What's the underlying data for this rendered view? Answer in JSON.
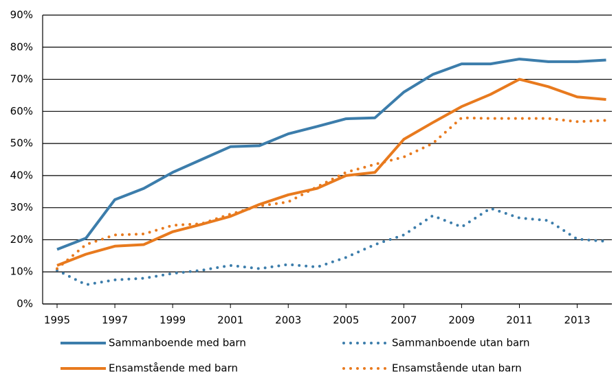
{
  "chart_data": {
    "type": "line",
    "x": [
      1995,
      1996,
      1997,
      1998,
      1999,
      2000,
      2001,
      2002,
      2003,
      2004,
      2005,
      2006,
      2007,
      2008,
      2009,
      2010,
      2011,
      2012,
      2013,
      2014
    ],
    "xlim": [
      1994.5,
      2014.2
    ],
    "xticks": [
      1995,
      1997,
      1999,
      2001,
      2003,
      2005,
      2007,
      2009,
      2011,
      2013
    ],
    "ylim": [
      0,
      90
    ],
    "yticks": [
      {
        "value": 0,
        "label": "0%"
      },
      {
        "value": 10,
        "label": "10%"
      },
      {
        "value": 20,
        "label": "20%"
      },
      {
        "value": 30,
        "label": "30%"
      },
      {
        "value": 40,
        "label": "40%"
      },
      {
        "value": 50,
        "label": "50%"
      },
      {
        "value": 60,
        "label": "60%"
      },
      {
        "value": 70,
        "label": "70%"
      },
      {
        "value": 80,
        "label": "80%"
      },
      {
        "value": 90,
        "label": "90%"
      }
    ],
    "grid": true,
    "legend": "bottom",
    "series": [
      {
        "name": "Sammanboende med barn",
        "color": "#3c7dab",
        "style": "solid",
        "values": [
          17,
          20.5,
          32.5,
          36,
          41,
          45,
          49,
          49.3,
          53,
          55.3,
          57.7,
          58,
          66,
          71.5,
          74.8,
          74.8,
          76.3,
          75.5,
          75.5,
          76
        ]
      },
      {
        "name": "Sammanboende utan barn",
        "color": "#3c7dab",
        "style": "dotted",
        "values": [
          10.5,
          6,
          7.5,
          8,
          9.5,
          10.5,
          12,
          11,
          12.3,
          11.5,
          14.5,
          18.5,
          21.5,
          27.5,
          24,
          29.8,
          26.8,
          26,
          20.2,
          19.5
        ]
      },
      {
        "name": "Ensamstående med barn",
        "color": "#e87a1e",
        "style": "solid",
        "values": [
          12,
          15.5,
          18,
          18.5,
          22.5,
          24.8,
          27.3,
          31,
          34,
          36,
          40,
          41,
          51.3,
          56.5,
          61.5,
          65.3,
          70,
          67.7,
          64.5,
          63.7
        ]
      },
      {
        "name": "Ensamstående utan barn",
        "color": "#e87a1e",
        "style": "dotted",
        "values": [
          11,
          18.5,
          21.5,
          21.8,
          24.5,
          25,
          28,
          30.5,
          31.8,
          36.5,
          41,
          43.5,
          45.8,
          50,
          58,
          57.8,
          57.8,
          57.8,
          56.8,
          57.2
        ]
      }
    ]
  }
}
